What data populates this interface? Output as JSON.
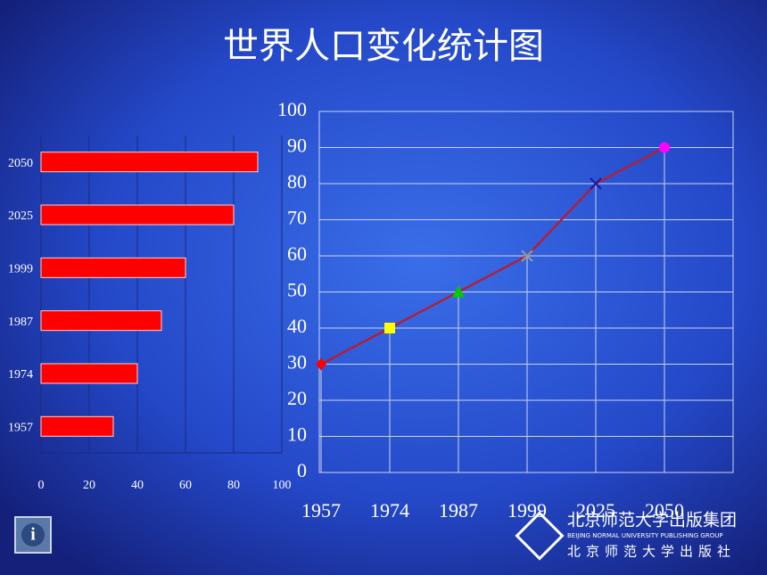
{
  "title": "世界人口变化统计图",
  "chart_data": [
    {
      "type": "hbar",
      "categories": [
        "1957",
        "1974",
        "1987",
        "1999",
        "2025",
        "2050"
      ],
      "values": [
        30,
        40,
        50,
        60,
        80,
        90
      ],
      "color": "#ff0000",
      "xlim": [
        0,
        100
      ],
      "xticks": [
        0,
        20,
        40,
        60,
        80,
        100
      ],
      "grid": true
    },
    {
      "type": "line",
      "categories": [
        "1957",
        "1974",
        "1987",
        "1999",
        "2025",
        "2050"
      ],
      "values": [
        30,
        40,
        50,
        60,
        80,
        90
      ],
      "color": "#b0203a",
      "ylim": [
        0,
        100
      ],
      "yticks": [
        0,
        10,
        20,
        30,
        40,
        50,
        60,
        70,
        80,
        90,
        100
      ],
      "grid": true,
      "markers": [
        "diamond",
        "square",
        "triangle",
        "x",
        "x",
        "circle"
      ],
      "marker_colors": [
        "#ff0000",
        "#ffff00",
        "#00cc00",
        "#999999",
        "#1a1aa0",
        "#ff00ff"
      ]
    }
  ],
  "logo": {
    "name": "北京师范大学出版集团",
    "english": "BEIJING NORMAL UNIVERSITY PUBLISHING GROUP",
    "press": "北京师范大学出版社"
  }
}
